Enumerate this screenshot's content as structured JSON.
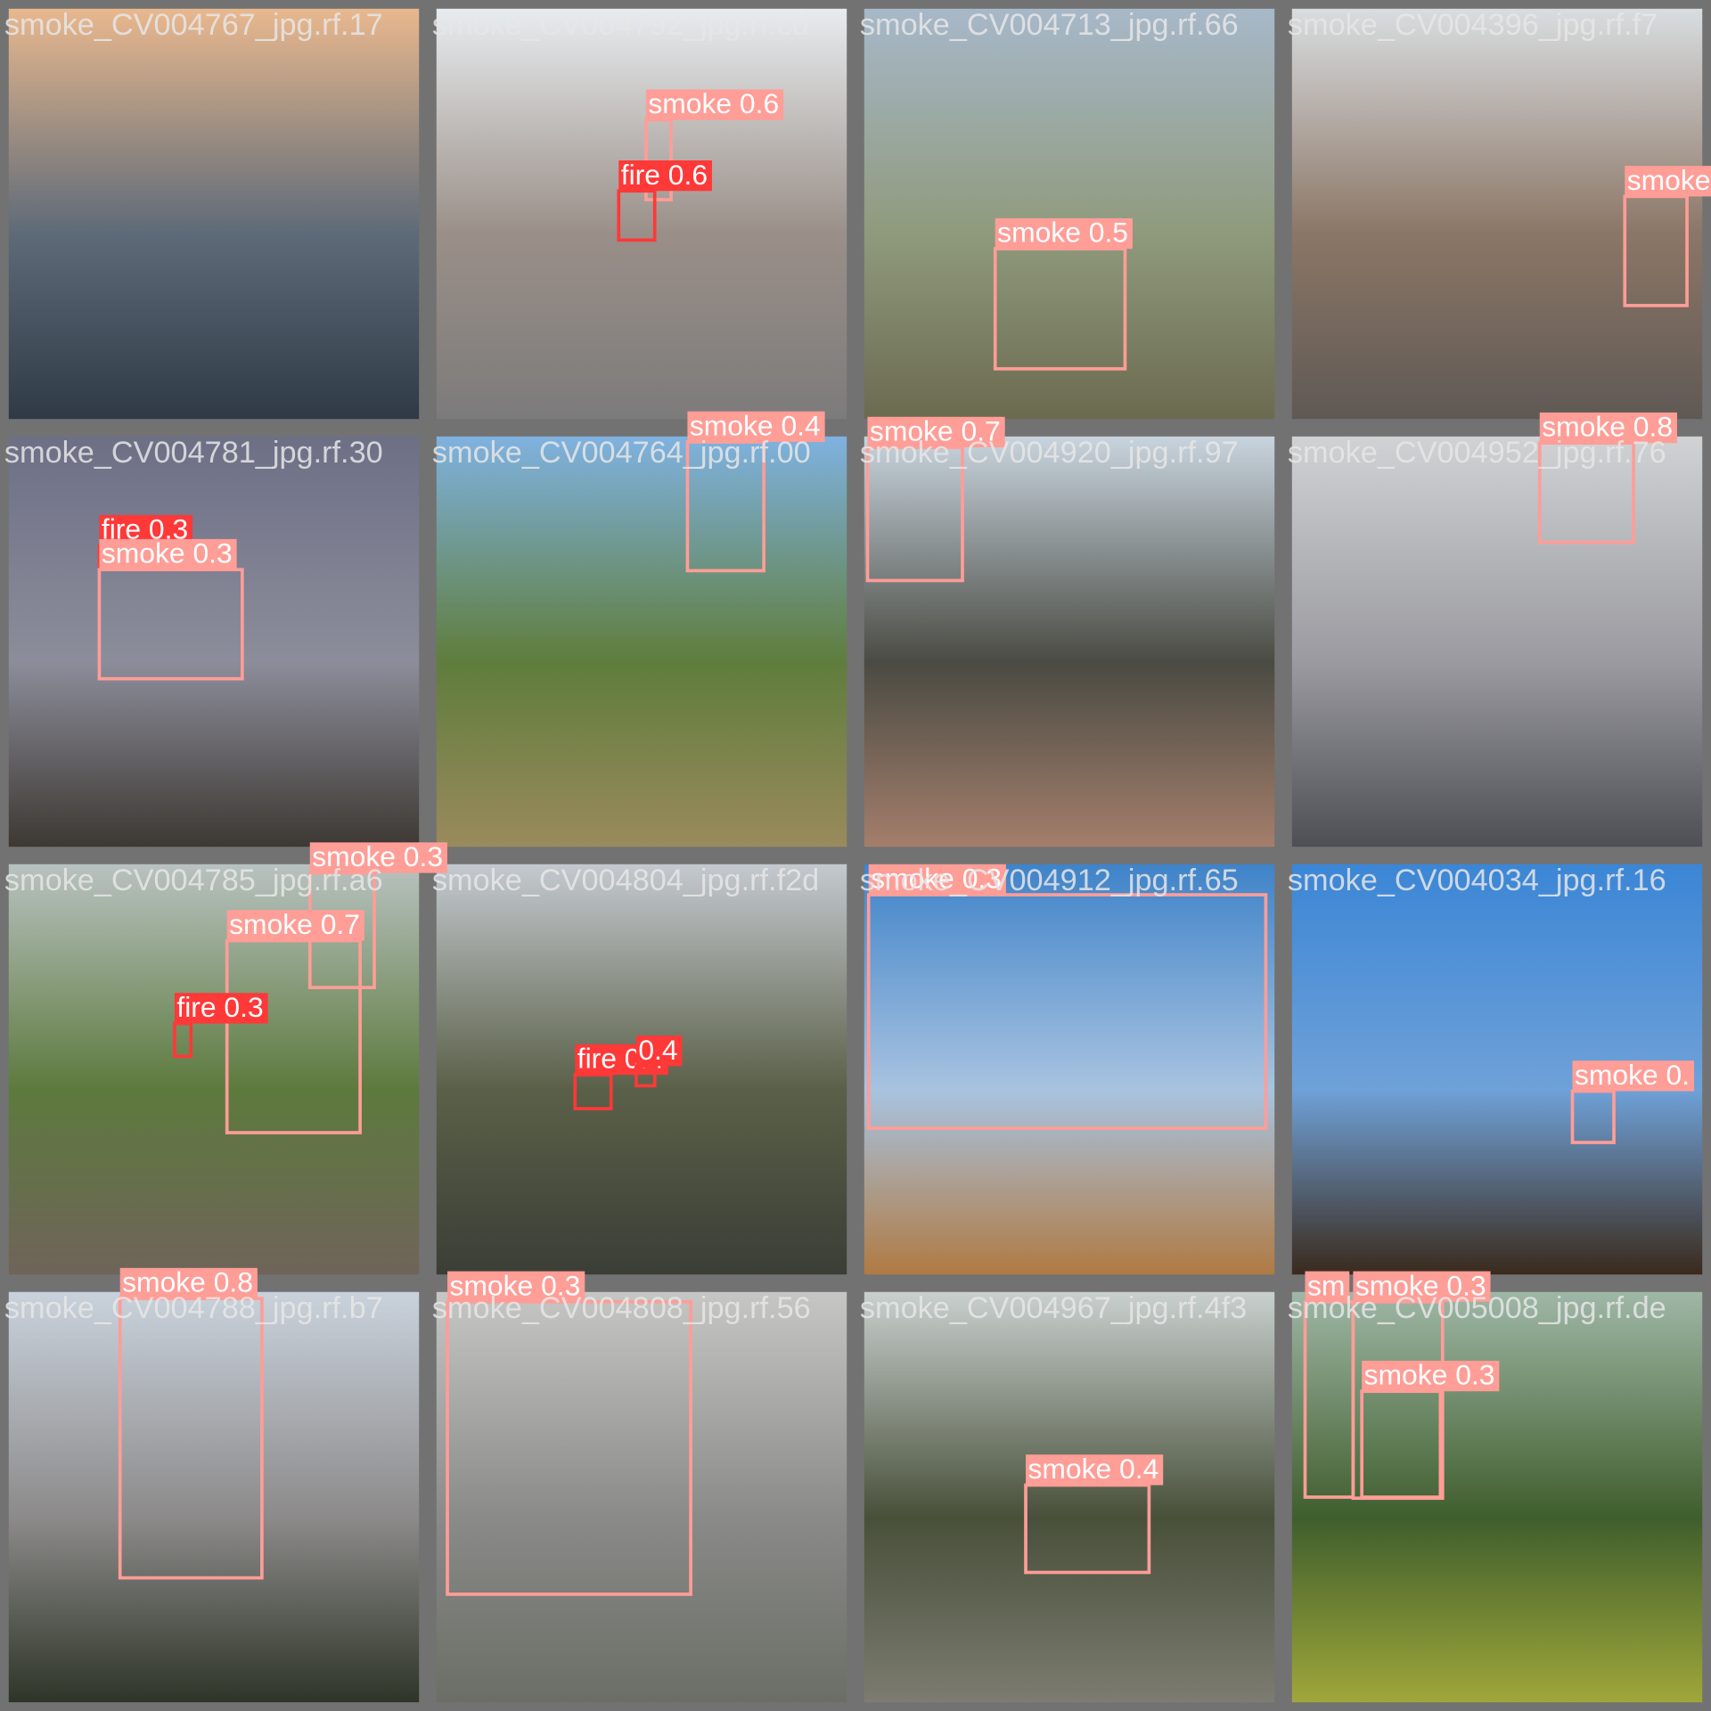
{
  "tiles": [
    {
      "filename": "smoke_CV004767_jpg.rf.17",
      "detections": []
    },
    {
      "filename": "smoke_CV004792_jpg.rf.cd",
      "detections": [
        {
          "label": "smoke 0.6"
        },
        {
          "label": "fire 0.6"
        }
      ]
    },
    {
      "filename": "smoke_CV004713_jpg.rf.66",
      "detections": [
        {
          "label": "smoke 0.5"
        }
      ]
    },
    {
      "filename": "smoke_CV004396_jpg.rf.f7",
      "detections": [
        {
          "label": "smoke"
        }
      ]
    },
    {
      "filename": "smoke_CV004781_jpg.rf.30",
      "detections": [
        {
          "label": "fire 0.3"
        },
        {
          "label": "smoke 0.3"
        }
      ]
    },
    {
      "filename": "smoke_CV004764_jpg.rf.00",
      "detections": [
        {
          "label": "smoke 0.4"
        }
      ]
    },
    {
      "filename": "smoke_CV004920_jpg.rf.97",
      "detections": [
        {
          "label": "smoke 0.7"
        }
      ]
    },
    {
      "filename": "smoke_CV004952_jpg.rf.76",
      "detections": [
        {
          "label": "smoke 0.8"
        }
      ]
    },
    {
      "filename": "smoke_CV004785_jpg.rf.a6",
      "detections": [
        {
          "label": "smoke 0.3"
        },
        {
          "label": "smoke 0.7"
        },
        {
          "label": "fire 0.3"
        }
      ]
    },
    {
      "filename": "smoke_CV004804_jpg.rf.f2d",
      "detections": [
        {
          "label": "fire 0.4"
        },
        {
          "label": "0.4"
        }
      ]
    },
    {
      "filename": "smoke_CV004912_jpg.rf.65",
      "detections": [
        {
          "label": "smoke 0.3"
        }
      ]
    },
    {
      "filename": "smoke_CV004034_jpg.rf.16",
      "detections": [
        {
          "label": "smoke 0."
        }
      ]
    },
    {
      "filename": "smoke_CV004788_jpg.rf.b7",
      "detections": [
        {
          "label": "smoke 0.8"
        }
      ]
    },
    {
      "filename": "smoke_CV004808_jpg.rf.56",
      "detections": [
        {
          "label": "smoke 0.3"
        }
      ]
    },
    {
      "filename": "smoke_CV004967_jpg.rf.4f3",
      "detections": [
        {
          "label": "smoke 0.4"
        }
      ]
    },
    {
      "filename": "smoke_CV005008_jpg.rf.de",
      "detections": [
        {
          "label": "sm"
        },
        {
          "label": "smoke 0.3"
        },
        {
          "label": "smoke 0.3"
        }
      ]
    }
  ]
}
